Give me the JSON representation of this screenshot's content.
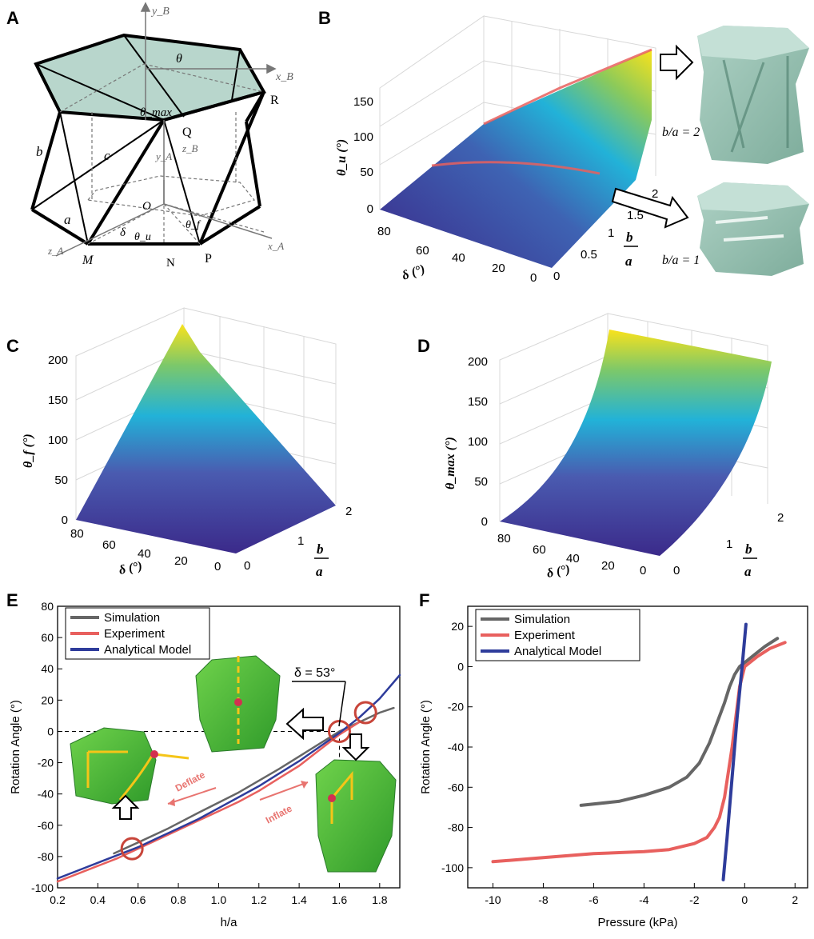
{
  "panels": {
    "A": "A",
    "B": "B",
    "C": "C",
    "D": "D",
    "E": "E",
    "F": "F"
  },
  "panel_a": {
    "labels": [
      "y_B",
      "θ",
      "x_B",
      "θ_max",
      "Q",
      "z_B",
      "y_A",
      "R",
      "b",
      "c",
      "a",
      "O",
      "δ",
      "θ_u",
      "θ_f",
      "x_A",
      "z_A",
      "M",
      "N",
      "P"
    ]
  },
  "panel_b": {
    "ylabel": "θ_u (°)",
    "yticks": [
      "0",
      "50",
      "100",
      "150"
    ],
    "dticks": [
      "80",
      "60",
      "40",
      "20",
      "0"
    ],
    "bticks": [
      "0",
      "0.5",
      "1",
      "1.5",
      "2"
    ],
    "xlabel": "δ (°)",
    "ratio_b": "b",
    "ratio_a": "a",
    "annot_2": "b/a = 2",
    "annot_1": "b/a = 1"
  },
  "panel_c": {
    "ylabel": "θ_f (°)",
    "yticks": [
      "0",
      "50",
      "100",
      "150",
      "200"
    ],
    "dticks": [
      "80",
      "60",
      "40",
      "20",
      "0"
    ],
    "bticks": [
      "0",
      "1",
      "2"
    ],
    "xlabel": "δ (°)"
  },
  "panel_d": {
    "ylabel": "θ_max (°)",
    "yticks": [
      "0",
      "50",
      "100",
      "150",
      "200"
    ],
    "dticks": [
      "80",
      "60",
      "40",
      "20",
      "0"
    ],
    "bticks": [
      "0",
      "1",
      "2"
    ],
    "xlabel": "δ (°)"
  },
  "panel_e_text": {
    "delta_label": "δ = 53°",
    "deflate": "Deflate",
    "inflate": "Inflate"
  },
  "colors": {
    "simulation": "#666666",
    "experiment": "#e8605e",
    "analytical": "#2e3c9b",
    "surface_low": "#3b2a8a",
    "surface_mid": "#22b2d8",
    "surface_high": "#f9e21c",
    "hex_fill": "#b8d6cc",
    "green_model": "#58c23d"
  },
  "chart_data": [
    {
      "id": "E",
      "type": "line",
      "xlabel": "h/a",
      "ylabel": "Rotation Angle (°)",
      "xlim": [
        0.2,
        1.9
      ],
      "ylim": [
        -100,
        80
      ],
      "xticks": [
        0.2,
        0.4,
        0.6,
        0.8,
        1.0,
        1.2,
        1.4,
        1.6,
        1.8
      ],
      "xtick_labels": [
        "0.2",
        "0.4",
        "0.6",
        "0.8",
        "1.0",
        "1.2",
        "1.4",
        "1.6",
        "1.8"
      ],
      "yticks": [
        -100,
        -80,
        -60,
        -40,
        -20,
        0,
        20,
        40,
        60,
        80
      ],
      "legend": "top-left",
      "series": [
        {
          "name": "Simulation",
          "x": [
            0.48,
            0.6,
            0.75,
            0.9,
            1.1,
            1.3,
            1.5,
            1.6,
            1.7,
            1.8,
            1.87
          ],
          "y": [
            -78,
            -71,
            -62,
            -52,
            -39,
            -24,
            -8,
            0,
            6,
            12,
            15
          ]
        },
        {
          "name": "Experiment",
          "x": [
            0.2,
            0.3,
            0.4,
            0.5,
            0.6,
            0.7,
            0.8,
            0.9,
            1.0,
            1.1,
            1.2,
            1.3,
            1.4,
            1.5,
            1.6,
            1.7
          ],
          "y": [
            -96,
            -91,
            -86,
            -81,
            -75,
            -69,
            -63,
            -57,
            -51,
            -45,
            -38,
            -30,
            -22,
            -12,
            -2,
            6
          ]
        },
        {
          "name": "Analytical Model",
          "x": [
            0.2,
            0.3,
            0.4,
            0.5,
            0.6,
            0.7,
            0.8,
            0.9,
            1.0,
            1.1,
            1.2,
            1.3,
            1.4,
            1.5,
            1.6,
            1.7,
            1.8,
            1.9
          ],
          "y": [
            -94,
            -89,
            -84,
            -79,
            -74,
            -68,
            -62,
            -56,
            -49,
            -42,
            -35,
            -27,
            -19,
            -10,
            -1,
            9,
            21,
            36
          ]
        }
      ]
    },
    {
      "id": "F",
      "type": "line",
      "xlabel": "Pressure (kPa)",
      "ylabel": "Rotation Angle (°)",
      "xlim": [
        -11,
        2.5
      ],
      "ylim": [
        -110,
        30
      ],
      "xticks": [
        -10,
        -8,
        -6,
        -4,
        -2,
        0,
        2
      ],
      "xtick_labels": [
        "-10",
        "-8",
        "-6",
        "-4",
        "-2",
        "0",
        "2"
      ],
      "yticks": [
        -100,
        -80,
        -60,
        -40,
        -20,
        0,
        20
      ],
      "legend": "top-left",
      "series": [
        {
          "name": "Simulation",
          "x": [
            -6.5,
            -5,
            -4,
            -3,
            -2.3,
            -1.8,
            -1.4,
            -1.1,
            -0.8,
            -0.6,
            -0.4,
            -0.2,
            0,
            0.4,
            0.8,
            1.3
          ],
          "y": [
            -69,
            -67,
            -64,
            -60,
            -55,
            -48,
            -38,
            -28,
            -18,
            -10,
            -4,
            0,
            2,
            6,
            10,
            14
          ]
        },
        {
          "name": "Experiment",
          "x": [
            -10,
            -8,
            -6,
            -4,
            -3,
            -2,
            -1.5,
            -1.2,
            -1.0,
            -0.8,
            -0.5,
            -0.2,
            0,
            0.5,
            1,
            1.6
          ],
          "y": [
            -97,
            -95,
            -93,
            -92,
            -91,
            -88,
            -85,
            -80,
            -75,
            -65,
            -40,
            -10,
            0,
            5,
            9,
            12
          ]
        },
        {
          "name": "Analytical Model",
          "x": [
            -0.85,
            -0.7,
            -0.5,
            -0.3,
            -0.1,
            0.05
          ],
          "y": [
            -106,
            -85,
            -55,
            -25,
            0,
            21
          ]
        }
      ]
    }
  ]
}
